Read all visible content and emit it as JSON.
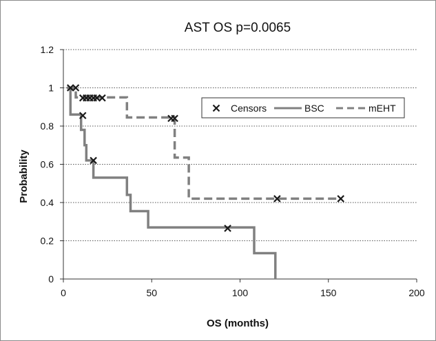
{
  "chart_data": {
    "type": "line",
    "title": "AST OS p=0.0065",
    "xlabel": "OS (months)",
    "ylabel": "Probability",
    "xlim": [
      0,
      200
    ],
    "ylim": [
      0,
      1.2
    ],
    "x_ticks": [
      "0",
      "50",
      "100",
      "150",
      "200"
    ],
    "y_ticks": [
      "0",
      "0.2",
      "0.4",
      "0.6",
      "0.8",
      "1",
      "1.2"
    ],
    "grid": "horizontal-dotted",
    "legend_position": "top-right",
    "legend": [
      {
        "label": "Censors",
        "marker": "x"
      },
      {
        "label": "BSC",
        "style": "solid"
      },
      {
        "label": "mEHT",
        "style": "dashed"
      }
    ],
    "series": [
      {
        "name": "BSC",
        "style": "solid",
        "color": "#808080",
        "step_x": [
          2,
          4,
          4,
          10,
          10,
          12,
          12,
          13,
          13,
          17,
          17,
          36,
          36,
          38,
          38,
          48,
          48,
          108,
          108,
          120,
          120
        ],
        "step_y": [
          1.0,
          1.0,
          0.86,
          0.86,
          0.78,
          0.78,
          0.7,
          0.7,
          0.62,
          0.62,
          0.53,
          0.53,
          0.44,
          0.44,
          0.355,
          0.355,
          0.27,
          0.27,
          0.135,
          0.135,
          0.0
        ]
      },
      {
        "name": "mEHT",
        "style": "dashed",
        "color": "#808080",
        "step_x": [
          2,
          7,
          7,
          36,
          36,
          63,
          63,
          71,
          71,
          157
        ],
        "step_y": [
          1.0,
          1.0,
          0.95,
          0.95,
          0.845,
          0.845,
          0.635,
          0.635,
          0.42,
          0.42
        ]
      }
    ],
    "censors": {
      "name": "Censors",
      "x": [
        4,
        7,
        11,
        13,
        15,
        17,
        19,
        22,
        17,
        61,
        63,
        93,
        121,
        157
      ],
      "y": [
        1.0,
        1.0,
        0.947,
        0.947,
        0.947,
        0.947,
        0.947,
        0.947,
        0.62,
        0.84,
        0.84,
        0.265,
        0.42,
        0.42
      ]
    },
    "censor_on_bsc": {
      "x": 11,
      "y": 0.855
    }
  }
}
